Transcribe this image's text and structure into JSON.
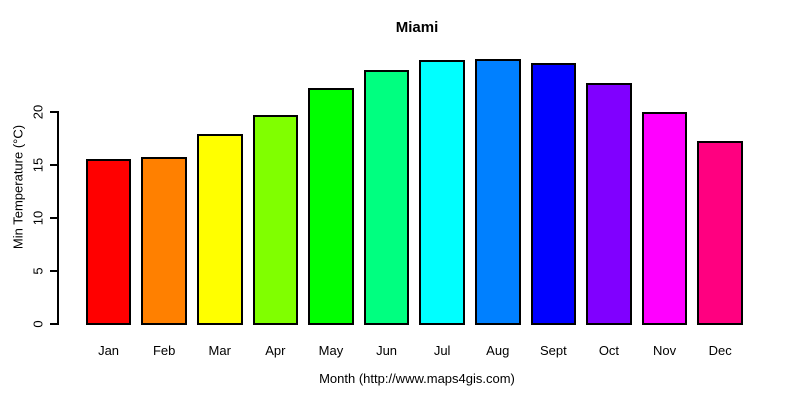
{
  "chart_data": {
    "type": "bar",
    "title": "Miami",
    "xlabel": "Month (http://www.maps4gis.com)",
    "ylabel": "Min Temperature (°C)",
    "categories": [
      "Jan",
      "Feb",
      "Mar",
      "Apr",
      "May",
      "Jun",
      "Jul",
      "Aug",
      "Sept",
      "Oct",
      "Nov",
      "Dec"
    ],
    "values": [
      15.4,
      15.6,
      17.8,
      19.6,
      22.1,
      23.8,
      24.8,
      24.9,
      24.5,
      22.6,
      19.9,
      17.1
    ],
    "bar_colors": [
      "#FF0000",
      "#FF8000",
      "#FFFF00",
      "#80FF00",
      "#00FF00",
      "#00FF80",
      "#00FFFF",
      "#0080FF",
      "#0000FF",
      "#8000FF",
      "#FF00FF",
      "#FF0080"
    ],
    "yticks": [
      0,
      5,
      10,
      15,
      20
    ],
    "ylim": [
      0,
      25
    ],
    "grid": false,
    "legend_position": "none",
    "axis_color": "#000000",
    "background_color": "#FFFFFF",
    "bar_border_color": "#000000"
  }
}
